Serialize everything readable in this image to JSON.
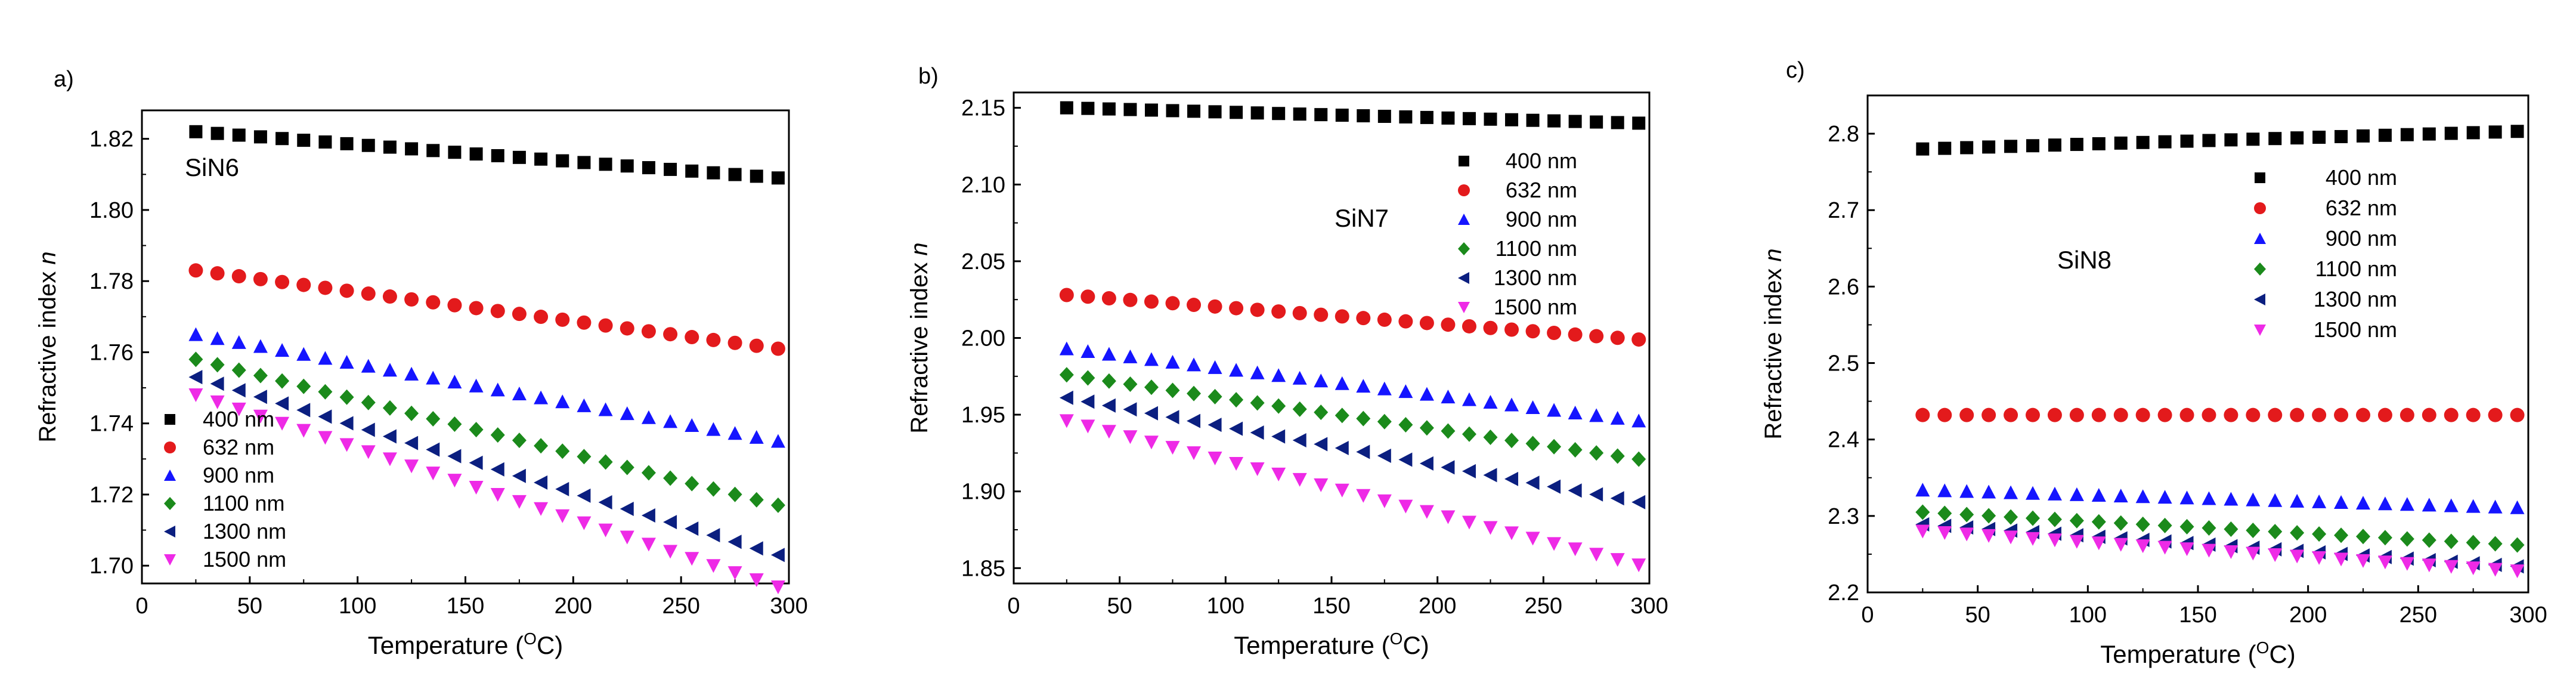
{
  "chart_data": [
    {
      "type": "scatter",
      "panel_label": "a)",
      "annotation": "SiN6",
      "xlabel": "Temperature (",
      "xlabel_sup": "O",
      "xlabel_suffix": "C)",
      "ylabel": "Refractive index ",
      "ylabel_italic": "n",
      "xlim": [
        0,
        300
      ],
      "ylim": [
        1.695,
        1.828
      ],
      "xticks": [
        0,
        50,
        100,
        150,
        200,
        250,
        300
      ],
      "yticks": [
        1.7,
        1.72,
        1.74,
        1.76,
        1.78,
        1.8,
        1.82
      ],
      "ytick_labels": [
        "1.70",
        "1.72",
        "1.74",
        "1.76",
        "1.78",
        "1.80",
        "1.82"
      ],
      "legend_position": "bottom-left",
      "x_range": [
        25,
        295
      ],
      "n_points": 28,
      "series": [
        {
          "name": "400 nm",
          "marker": "square",
          "color": "#000000",
          "start": 1.822,
          "end": 1.809
        },
        {
          "name": "632 nm",
          "marker": "circle",
          "color": "#e31a1c",
          "start": 1.783,
          "end": 1.761
        },
        {
          "name": "900 nm",
          "marker": "triangle-up",
          "color": "#1515ff",
          "start": 1.765,
          "end": 1.735
        },
        {
          "name": "1100 nm",
          "marker": "diamond",
          "color": "#1b8a1b",
          "start": 1.758,
          "end": 1.717
        },
        {
          "name": "1300 nm",
          "marker": "triangle-left",
          "color": "#0b1f80",
          "start": 1.753,
          "end": 1.703
        },
        {
          "name": "1500 nm",
          "marker": "triangle-down",
          "color": "#ee2ae6",
          "start": 1.748,
          "end": 1.694
        }
      ]
    },
    {
      "type": "scatter",
      "panel_label": "b)",
      "annotation": "SiN7",
      "xlabel": "Temperature (",
      "xlabel_sup": "O",
      "xlabel_suffix": "C)",
      "ylabel": "Refractive index ",
      "ylabel_italic": "n",
      "xlim": [
        0,
        300
      ],
      "ylim": [
        1.84,
        2.16
      ],
      "xticks": [
        0,
        50,
        100,
        150,
        200,
        250,
        300
      ],
      "yticks": [
        1.85,
        1.9,
        1.95,
        2.0,
        2.05,
        2.1,
        2.15
      ],
      "ytick_labels": [
        "1.85",
        "1.90",
        "1.95",
        "2.00",
        "2.05",
        "2.10",
        "2.15"
      ],
      "legend_position": "top-right",
      "x_range": [
        25,
        295
      ],
      "n_points": 28,
      "series": [
        {
          "name": "400 nm",
          "marker": "square",
          "color": "#000000",
          "start": 2.15,
          "end": 2.14
        },
        {
          "name": "632 nm",
          "marker": "circle",
          "color": "#e31a1c",
          "start": 2.028,
          "end": 1.999
        },
        {
          "name": "900 nm",
          "marker": "triangle-up",
          "color": "#1515ff",
          "start": 1.993,
          "end": 1.946
        },
        {
          "name": "1100 nm",
          "marker": "diamond",
          "color": "#1b8a1b",
          "start": 1.976,
          "end": 1.921
        },
        {
          "name": "1300 nm",
          "marker": "triangle-left",
          "color": "#0b1f80",
          "start": 1.961,
          "end": 1.893
        },
        {
          "name": "1500 nm",
          "marker": "triangle-down",
          "color": "#ee2ae6",
          "start": 1.946,
          "end": 1.852
        }
      ]
    },
    {
      "type": "scatter",
      "panel_label": "c)",
      "annotation": "SiN8",
      "xlabel": "Temperature (",
      "xlabel_sup": "O",
      "xlabel_suffix": "C)",
      "ylabel": "Refractive index ",
      "ylabel_italic": "n",
      "xlim": [
        0,
        300
      ],
      "ylim": [
        2.2,
        2.85
      ],
      "xticks": [
        0,
        50,
        100,
        150,
        200,
        250,
        300
      ],
      "yticks": [
        2.2,
        2.3,
        2.4,
        2.5,
        2.6,
        2.7,
        2.8
      ],
      "ytick_labels": [
        "2.2",
        "2.3",
        "2.4",
        "2.5",
        "2.6",
        "2.7",
        "2.8"
      ],
      "legend_position": "top-right",
      "x_range": [
        25,
        295
      ],
      "n_points": 28,
      "series": [
        {
          "name": "400 nm",
          "marker": "square",
          "color": "#000000",
          "start": 2.78,
          "end": 2.803
        },
        {
          "name": "632 nm",
          "marker": "circle",
          "color": "#e31a1c",
          "start": 2.432,
          "end": 2.432
        },
        {
          "name": "900 nm",
          "marker": "triangle-up",
          "color": "#1515ff",
          "start": 2.334,
          "end": 2.311
        },
        {
          "name": "1100 nm",
          "marker": "diamond",
          "color": "#1b8a1b",
          "start": 2.305,
          "end": 2.262
        },
        {
          "name": "1300 nm",
          "marker": "triangle-left",
          "color": "#0b1f80",
          "start": 2.289,
          "end": 2.234
        },
        {
          "name": "1500 nm",
          "marker": "triangle-down",
          "color": "#ee2ae6",
          "start": 2.28,
          "end": 2.228
        }
      ]
    }
  ]
}
